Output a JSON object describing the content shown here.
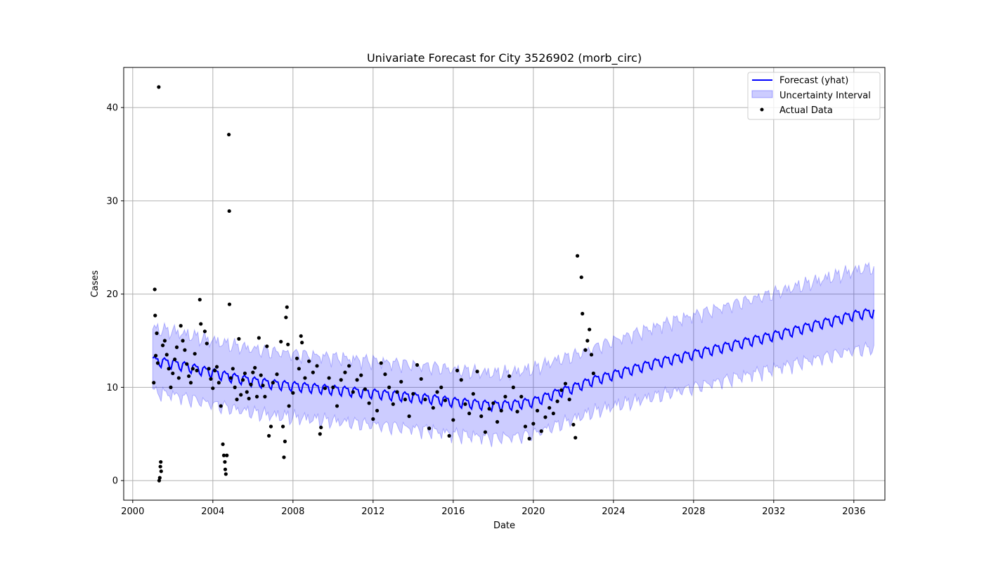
{
  "chart_data": {
    "type": "line",
    "title": "Univariate Forecast for City 3526902 (morb_circ)",
    "xlabel": "Date",
    "ylabel": "Cases",
    "xlim": [
      1999.55,
      2037.55
    ],
    "ylim": [
      -2.1,
      44.3
    ],
    "x_ticks": [
      2000,
      2004,
      2008,
      2012,
      2016,
      2020,
      2024,
      2028,
      2032,
      2036
    ],
    "y_ticks": [
      0,
      10,
      20,
      30,
      40
    ],
    "grid": true,
    "legend_position": "top-right",
    "legend": [
      "Forecast (yhat)",
      "Uncertainty Interval",
      "Actual Data"
    ],
    "colors": {
      "forecast": "#0000ff",
      "interval": "#8080ff",
      "actual": "#000000"
    },
    "series": [
      {
        "name": "Forecast (yhat)",
        "type": "line",
        "x": [
          2001.0,
          2002.0,
          2003.0,
          2004.0,
          2005.0,
          2006.0,
          2007.0,
          2008.0,
          2009.0,
          2010.0,
          2011.0,
          2012.0,
          2013.0,
          2014.0,
          2015.0,
          2016.0,
          2017.0,
          2018.0,
          2019.0,
          2020.0,
          2021.0,
          2022.0,
          2023.0,
          2024.0,
          2025.0,
          2026.0,
          2027.0,
          2028.0,
          2029.0,
          2030.0,
          2031.0,
          2032.0,
          2033.0,
          2034.0,
          2035.0,
          2036.0,
          2037.0
        ],
        "y": [
          12.9,
          12.6,
          12.1,
          11.6,
          11.1,
          10.7,
          10.4,
          10.2,
          10.0,
          9.8,
          9.6,
          9.4,
          9.2,
          9.0,
          8.8,
          8.5,
          8.3,
          8.1,
          8.2,
          8.5,
          9.3,
          10.0,
          10.8,
          11.4,
          12.0,
          12.6,
          13.1,
          13.6,
          14.1,
          14.6,
          15.1,
          15.6,
          16.1,
          16.7,
          17.2,
          17.8,
          18.1
        ]
      },
      {
        "name": "Uncertainty Interval",
        "type": "area",
        "x": [
          2001.0,
          2002.0,
          2003.0,
          2004.0,
          2005.0,
          2006.0,
          2007.0,
          2008.0,
          2009.0,
          2010.0,
          2011.0,
          2012.0,
          2013.0,
          2014.0,
          2015.0,
          2016.0,
          2017.0,
          2018.0,
          2019.0,
          2020.0,
          2021.0,
          2022.0,
          2023.0,
          2024.0,
          2025.0,
          2026.0,
          2027.0,
          2028.0,
          2029.0,
          2030.0,
          2031.0,
          2032.0,
          2033.0,
          2034.0,
          2035.0,
          2036.0,
          2037.0
        ],
        "upper": [
          16.3,
          16.0,
          15.5,
          15.0,
          14.5,
          14.1,
          13.8,
          13.6,
          13.4,
          13.2,
          13.0,
          12.8,
          12.6,
          12.4,
          12.2,
          11.9,
          11.7,
          11.5,
          11.6,
          12.0,
          12.8,
          13.4,
          14.2,
          15.0,
          15.7,
          16.4,
          17.1,
          17.7,
          18.3,
          18.9,
          19.5,
          20.1,
          20.7,
          21.3,
          21.9,
          22.5,
          22.9
        ],
        "lower": [
          9.5,
          9.2,
          8.7,
          8.2,
          7.7,
          7.3,
          7.0,
          6.8,
          6.6,
          6.4,
          6.2,
          6.0,
          5.8,
          5.6,
          5.3,
          5.0,
          4.8,
          4.6,
          4.7,
          5.0,
          5.8,
          6.6,
          7.4,
          8.0,
          8.5,
          9.0,
          9.5,
          10.0,
          10.5,
          11.0,
          11.5,
          12.0,
          12.5,
          13.0,
          13.5,
          14.0,
          14.2
        ]
      },
      {
        "name": "Actual Data",
        "type": "scatter",
        "points": [
          [
            2001.05,
            10.5
          ],
          [
            2001.1,
            20.5
          ],
          [
            2001.12,
            17.7
          ],
          [
            2001.15,
            13.4
          ],
          [
            2001.2,
            15.8
          ],
          [
            2001.25,
            12.6
          ],
          [
            2001.3,
            42.2
          ],
          [
            2001.32,
            0.0
          ],
          [
            2001.35,
            0.3
          ],
          [
            2001.38,
            1.5
          ],
          [
            2001.4,
            2.0
          ],
          [
            2001.42,
            1.0
          ],
          [
            2001.5,
            14.5
          ],
          [
            2001.6,
            15.0
          ],
          [
            2001.7,
            13.5
          ],
          [
            2001.8,
            12.0
          ],
          [
            2001.9,
            10.0
          ],
          [
            2002.0,
            11.5
          ],
          [
            2002.1,
            13.0
          ],
          [
            2002.2,
            14.3
          ],
          [
            2002.3,
            11.0
          ],
          [
            2002.4,
            16.6
          ],
          [
            2002.5,
            15.0
          ],
          [
            2002.6,
            14.0
          ],
          [
            2002.7,
            12.5
          ],
          [
            2002.8,
            11.2
          ],
          [
            2002.9,
            10.5
          ],
          [
            2003.0,
            12.0
          ],
          [
            2003.1,
            13.6
          ],
          [
            2003.2,
            11.8
          ],
          [
            2003.35,
            19.4
          ],
          [
            2003.4,
            16.8
          ],
          [
            2003.6,
            16.0
          ],
          [
            2003.7,
            14.7
          ],
          [
            2003.8,
            12.0
          ],
          [
            2003.9,
            10.9
          ],
          [
            2004.0,
            9.9
          ],
          [
            2004.1,
            11.8
          ],
          [
            2004.2,
            12.2
          ],
          [
            2004.3,
            10.5
          ],
          [
            2004.4,
            8.0
          ],
          [
            2004.5,
            3.9
          ],
          [
            2004.55,
            2.7
          ],
          [
            2004.6,
            2.0
          ],
          [
            2004.62,
            1.2
          ],
          [
            2004.65,
            0.7
          ],
          [
            2004.7,
            2.7
          ],
          [
            2004.8,
            37.1
          ],
          [
            2004.82,
            28.9
          ],
          [
            2004.83,
            18.9
          ],
          [
            2004.9,
            11.0
          ],
          [
            2005.0,
            12.0
          ],
          [
            2005.1,
            10.0
          ],
          [
            2005.2,
            8.7
          ],
          [
            2005.3,
            15.2
          ],
          [
            2005.4,
            9.2
          ],
          [
            2005.5,
            10.8
          ],
          [
            2005.6,
            11.5
          ],
          [
            2005.7,
            9.5
          ],
          [
            2005.8,
            8.8
          ],
          [
            2005.9,
            10.3
          ],
          [
            2006.0,
            11.6
          ],
          [
            2006.1,
            12.1
          ],
          [
            2006.2,
            9.0
          ],
          [
            2006.3,
            15.3
          ],
          [
            2006.4,
            11.3
          ],
          [
            2006.5,
            10.2
          ],
          [
            2006.6,
            9.0
          ],
          [
            2006.7,
            14.4
          ],
          [
            2006.8,
            4.8
          ],
          [
            2006.9,
            5.8
          ],
          [
            2007.0,
            10.5
          ],
          [
            2007.2,
            11.4
          ],
          [
            2007.4,
            14.9
          ],
          [
            2007.5,
            5.8
          ],
          [
            2007.55,
            2.5
          ],
          [
            2007.6,
            4.2
          ],
          [
            2007.65,
            17.5
          ],
          [
            2007.7,
            18.6
          ],
          [
            2007.75,
            14.6
          ],
          [
            2007.8,
            8.0
          ],
          [
            2008.0,
            9.4
          ],
          [
            2008.2,
            13.1
          ],
          [
            2008.3,
            12.0
          ],
          [
            2008.4,
            15.5
          ],
          [
            2008.45,
            14.8
          ],
          [
            2008.6,
            11.0
          ],
          [
            2008.8,
            12.8
          ],
          [
            2009.0,
            11.6
          ],
          [
            2009.2,
            12.3
          ],
          [
            2009.35,
            5.0
          ],
          [
            2009.4,
            5.7
          ],
          [
            2009.6,
            9.9
          ],
          [
            2009.8,
            11.0
          ],
          [
            2010.0,
            10.0
          ],
          [
            2010.2,
            8.0
          ],
          [
            2010.4,
            10.8
          ],
          [
            2010.6,
            11.6
          ],
          [
            2010.8,
            12.3
          ],
          [
            2011.0,
            9.5
          ],
          [
            2011.2,
            10.8
          ],
          [
            2011.4,
            11.3
          ],
          [
            2011.6,
            9.8
          ],
          [
            2011.8,
            8.3
          ],
          [
            2012.0,
            6.6
          ],
          [
            2012.2,
            7.5
          ],
          [
            2012.4,
            12.6
          ],
          [
            2012.6,
            11.4
          ],
          [
            2012.8,
            10.0
          ],
          [
            2013.0,
            8.2
          ],
          [
            2013.2,
            9.5
          ],
          [
            2013.4,
            10.6
          ],
          [
            2013.6,
            8.7
          ],
          [
            2013.8,
            6.9
          ],
          [
            2014.0,
            9.3
          ],
          [
            2014.2,
            12.4
          ],
          [
            2014.4,
            10.9
          ],
          [
            2014.6,
            8.7
          ],
          [
            2014.8,
            5.6
          ],
          [
            2015.0,
            7.8
          ],
          [
            2015.2,
            9.5
          ],
          [
            2015.4,
            10.0
          ],
          [
            2015.6,
            8.6
          ],
          [
            2015.8,
            4.8
          ],
          [
            2016.0,
            6.5
          ],
          [
            2016.2,
            11.8
          ],
          [
            2016.4,
            10.8
          ],
          [
            2016.6,
            8.2
          ],
          [
            2016.8,
            7.2
          ],
          [
            2017.0,
            9.3
          ],
          [
            2017.2,
            11.7
          ],
          [
            2017.4,
            6.9
          ],
          [
            2017.6,
            5.2
          ],
          [
            2017.8,
            7.7
          ],
          [
            2018.0,
            8.3
          ],
          [
            2018.2,
            6.3
          ],
          [
            2018.4,
            7.5
          ],
          [
            2018.6,
            9.0
          ],
          [
            2018.8,
            11.2
          ],
          [
            2019.0,
            10.0
          ],
          [
            2019.2,
            7.4
          ],
          [
            2019.4,
            9.0
          ],
          [
            2019.6,
            5.8
          ],
          [
            2019.8,
            4.5
          ],
          [
            2020.0,
            6.1
          ],
          [
            2020.2,
            7.5
          ],
          [
            2020.4,
            5.3
          ],
          [
            2020.6,
            6.8
          ],
          [
            2020.8,
            7.8
          ],
          [
            2021.0,
            7.2
          ],
          [
            2021.2,
            8.5
          ],
          [
            2021.4,
            9.7
          ],
          [
            2021.6,
            10.4
          ],
          [
            2021.8,
            8.7
          ],
          [
            2022.0,
            6.0
          ],
          [
            2022.1,
            4.6
          ],
          [
            2022.2,
            24.1
          ],
          [
            2022.4,
            21.8
          ],
          [
            2022.45,
            17.9
          ],
          [
            2022.6,
            14.0
          ],
          [
            2022.7,
            15.0
          ],
          [
            2022.8,
            16.2
          ],
          [
            2022.9,
            13.5
          ],
          [
            2023.0,
            11.5
          ]
        ]
      }
    ]
  }
}
